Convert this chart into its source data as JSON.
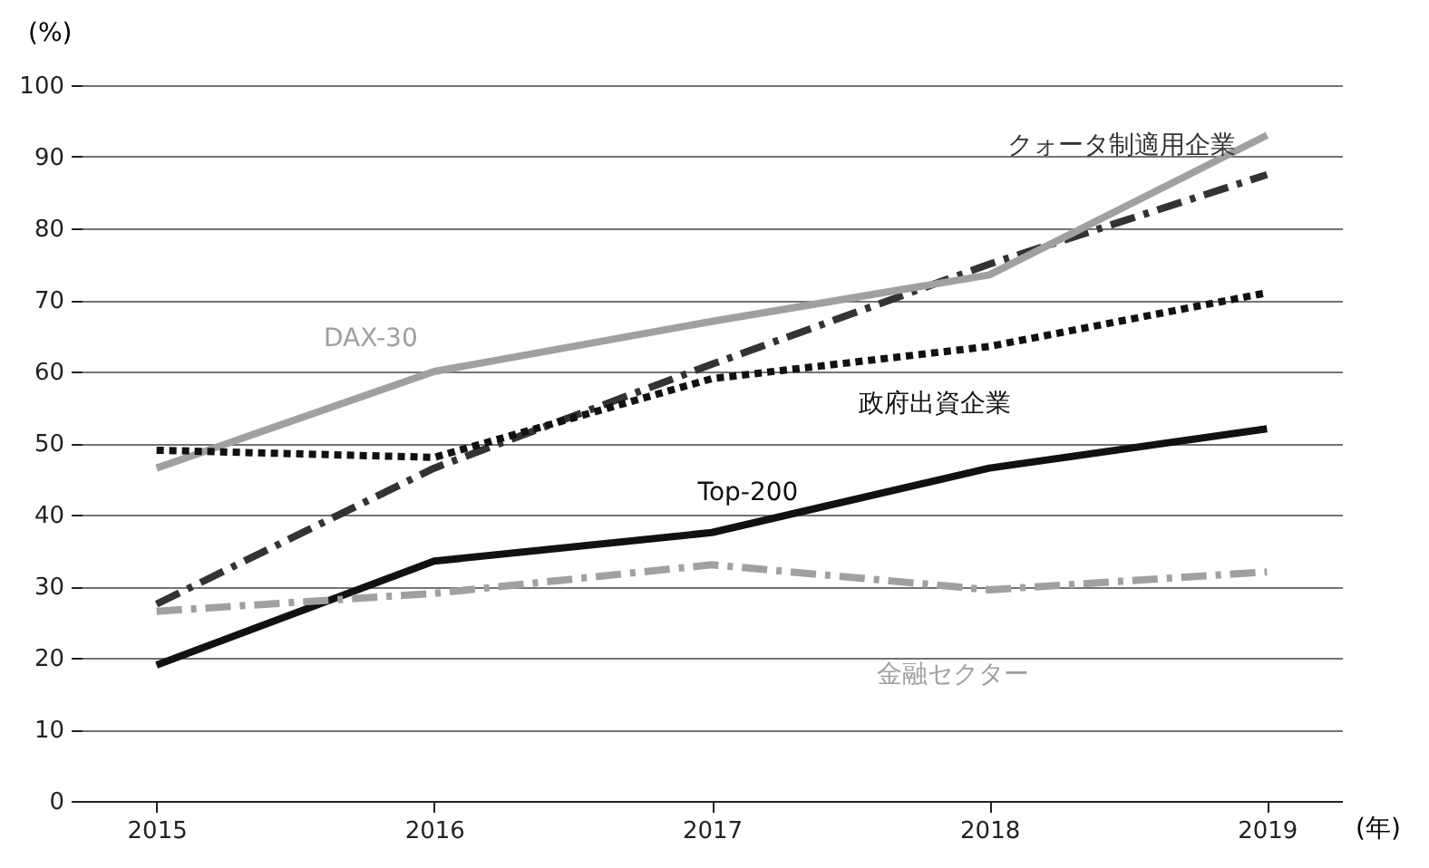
{
  "chart_data": {
    "type": "line",
    "xlabel": "(年)",
    "ylabel": "(%)",
    "categories": [
      "2015",
      "2016",
      "2017",
      "2018",
      "2019"
    ],
    "ylim": [
      0,
      100
    ],
    "yticks": [
      0,
      10,
      20,
      30,
      40,
      50,
      60,
      70,
      80,
      90,
      100
    ],
    "grid": "y",
    "marker": "none",
    "series": [
      {
        "name": "クォータ制適用企業",
        "color": "#333333",
        "line_style": "dashed",
        "values": [
          27.5,
          46.5,
          61,
          75,
          87.5
        ]
      },
      {
        "name": "DAX-30",
        "color": "#a0a0a0",
        "line_style": "solid",
        "values": [
          46.5,
          60,
          67,
          73.5,
          93
        ]
      },
      {
        "name": "政府出資企業",
        "color": "#111111",
        "line_style": "dotted",
        "values": [
          49,
          48,
          59,
          63.5,
          71
        ]
      },
      {
        "name": "Top-200",
        "color": "#111111",
        "line_style": "solid",
        "values": [
          19,
          33.5,
          37.5,
          46.5,
          52
        ]
      },
      {
        "name": "金融セクター",
        "color": "#a0a0a0",
        "line_style": "dashed",
        "values": [
          26.5,
          29,
          33,
          29.5,
          32
        ]
      }
    ]
  }
}
